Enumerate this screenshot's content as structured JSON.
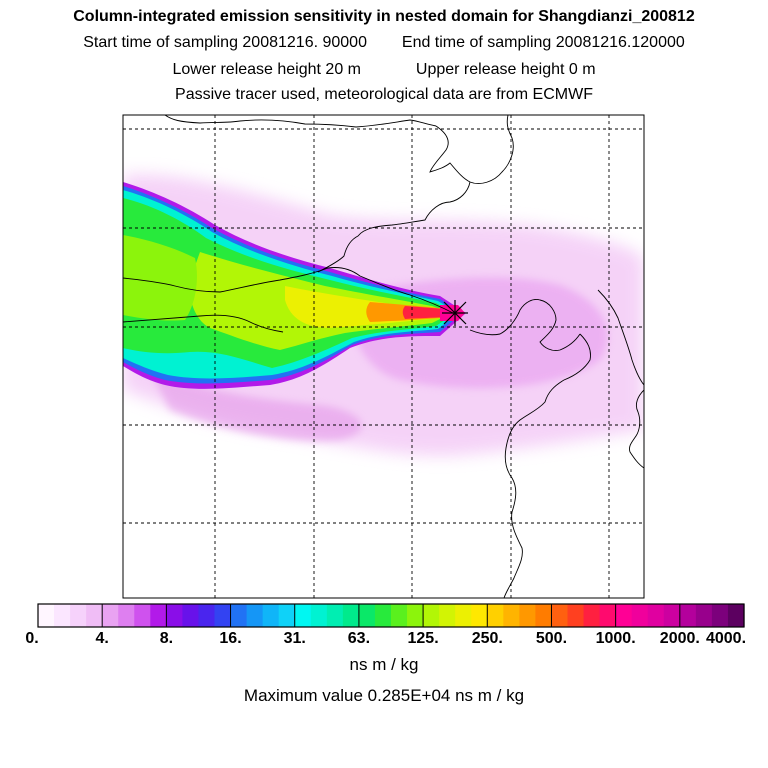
{
  "header": {
    "line1": "Column-integrated emission sensitivity in nested domain for Shangdianzi_200812",
    "start_label": "Start time of sampling 20081216. 90000",
    "end_label": "End time of sampling 20081216.120000",
    "lower_label": "Lower release height   20 m",
    "upper_label": "Upper release height    0 m",
    "line4": "Passive tracer used, meteorological data are from ECMWF"
  },
  "chart_data": {
    "type": "heatmap",
    "title": "Column-integrated emission sensitivity in nested domain for Shangdianzi_200812",
    "colorbar": {
      "tick_labels": [
        "0.",
        "4.",
        "8.",
        "16.",
        "31.",
        "63.",
        "125.",
        "250.",
        "500.",
        "1000.",
        "2000.",
        "4000."
      ],
      "units": "ns m / kg",
      "colors": [
        "#fff6ff",
        "#fbe6ff",
        "#f6d2fb",
        "#f0bdf6",
        "#e9a3f2",
        "#de7ff0",
        "#cf52ee",
        "#b21ae9",
        "#8a0ee8",
        "#6812ea",
        "#4a25ee",
        "#3343f2",
        "#2172f4",
        "#1596f6",
        "#10b5f8",
        "#0fd2f8",
        "#00f7f2",
        "#00f2d2",
        "#00eeb2",
        "#00ea8c",
        "#0ae868",
        "#28ea3c",
        "#5af01e",
        "#8cf40c",
        "#b2f606",
        "#d2f404",
        "#ecf002",
        "#ffe800",
        "#ffd000",
        "#ffb400",
        "#ff9800",
        "#ff7c00",
        "#ff6010",
        "#ff4020",
        "#ff2040",
        "#ff0a6e",
        "#ff0095",
        "#f0009c",
        "#e000a0",
        "#cc00a0",
        "#b4009c",
        "#98008c",
        "#7c007c",
        "#5c0060"
      ]
    },
    "receptor_marker": "cross",
    "maximum_value": "Maximum value  0.285E+04 ns m / kg"
  }
}
